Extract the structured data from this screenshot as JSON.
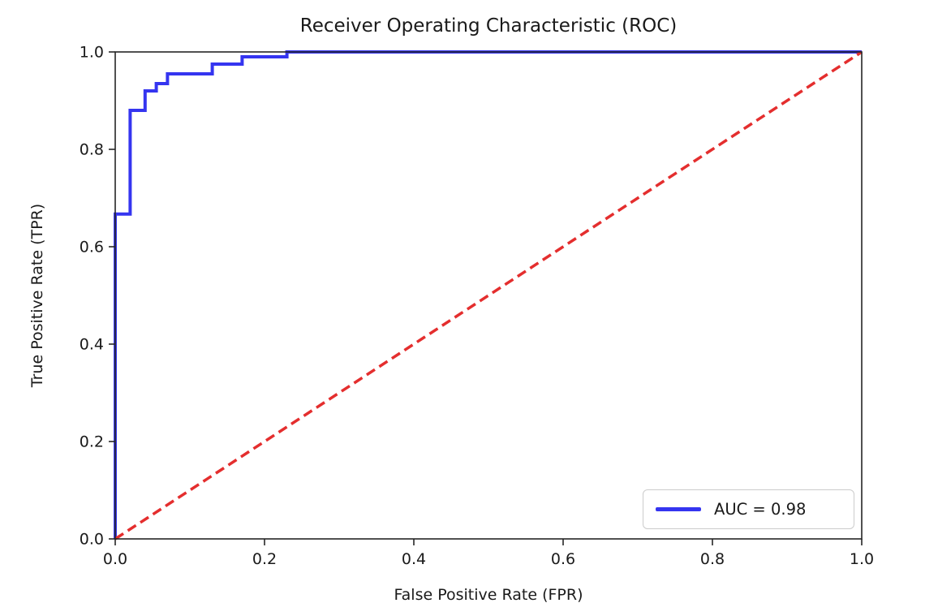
{
  "figure": {
    "background": "#ffffff"
  },
  "chart_data": {
    "type": "line",
    "title": "Receiver Operating Characteristic (ROC)",
    "xlabel": "False Positive Rate (FPR)",
    "ylabel": "True Positive Rate (TPR)",
    "xlim": [
      0.0,
      1.0
    ],
    "ylim": [
      0.0,
      1.0
    ],
    "xticks": [
      "0.0",
      "0.2",
      "0.4",
      "0.6",
      "0.8",
      "1.0"
    ],
    "yticks": [
      "0.0",
      "0.2",
      "0.4",
      "0.6",
      "0.8",
      "1.0"
    ],
    "xtick_values": [
      0.0,
      0.2,
      0.4,
      0.6,
      0.8,
      1.0
    ],
    "ytick_values": [
      0.0,
      0.2,
      0.4,
      0.6,
      0.8,
      1.0
    ],
    "grid": false,
    "auc": 0.98,
    "legend": {
      "position": "lower right",
      "entries": [
        {
          "label": "AUC = 0.98",
          "color": "#3535f0",
          "style": "solid"
        }
      ]
    },
    "series": [
      {
        "name": "roc-curve",
        "kind": "step",
        "color": "#3535f0",
        "linewidth": 4,
        "dash": null,
        "points": [
          [
            0.0,
            0.0
          ],
          [
            0.0,
            0.667
          ],
          [
            0.02,
            0.667
          ],
          [
            0.02,
            0.88
          ],
          [
            0.04,
            0.88
          ],
          [
            0.04,
            0.92
          ],
          [
            0.055,
            0.92
          ],
          [
            0.055,
            0.935
          ],
          [
            0.07,
            0.935
          ],
          [
            0.07,
            0.955
          ],
          [
            0.13,
            0.955
          ],
          [
            0.13,
            0.975
          ],
          [
            0.17,
            0.975
          ],
          [
            0.17,
            0.99
          ],
          [
            0.23,
            0.99
          ],
          [
            0.23,
            1.0
          ],
          [
            1.0,
            1.0
          ]
        ]
      },
      {
        "name": "chance-diagonal",
        "kind": "dashed",
        "color": "#e42e2e",
        "linewidth": 3.5,
        "dash": [
          12,
          6.5
        ],
        "points": [
          [
            0.0,
            0.0
          ],
          [
            1.0,
            1.0
          ]
        ]
      }
    ],
    "axis_color": "#262626"
  }
}
